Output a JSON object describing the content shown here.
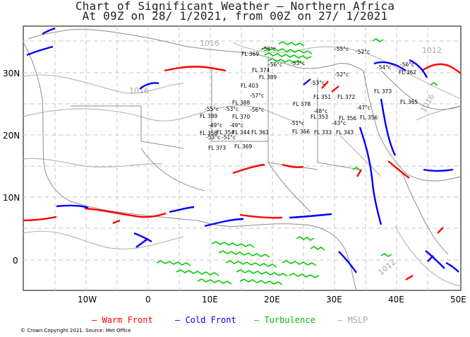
{
  "header": {
    "title_line1": "Chart of Significant Weather — Northern Africa",
    "title_line2": "At 09Z on 28/ 1/2021, from 00Z on 27/ 1/2021"
  },
  "axes": {
    "x_ticks": [
      "10W",
      "0",
      "10E",
      "20E",
      "30E",
      "40E",
      "50E"
    ],
    "y_ticks": [
      "30N",
      "20N",
      "10N",
      "0"
    ]
  },
  "legend": {
    "warm_front": "— Warm Front",
    "cold_front": "— Cold Front",
    "turbulence": "— Turbulence",
    "mslp": "— MSLP"
  },
  "colors": {
    "warm_front": "#ff0000",
    "cold_front": "#0000ff",
    "turbulence": "#00cc00",
    "mslp": "#b0b0b0",
    "coast": "#8c8c8c",
    "grid": "#c8c8c8"
  },
  "isobar_labels": [
    "1016",
    "1016",
    "1016",
    "1012",
    "1012"
  ],
  "tropopause_labels": [
    "-55°c",
    "-53°c",
    "-56°c",
    "-58°c",
    "-54°c",
    "-56°c",
    "-57°c",
    "-56°c",
    "-55°c",
    "-53°c",
    "-53°c",
    "-52°c",
    "-51°c",
    "-52°c",
    "-49°c",
    "-48°c",
    "-49°c",
    "-47°c",
    "-53°c",
    "-51°c",
    "-43°c",
    "FL 374",
    "FL 369",
    "FL 365",
    "FL 366",
    "FL 362",
    "FL 356",
    "FL 403",
    "FL 388",
    "FL 389",
    "FL 373",
    "FL 351",
    "FL 372",
    "FL 389",
    "FL 370",
    "FL 353",
    "FL 344",
    "FL 378",
    "FL 356",
    "FL 358",
    "FL 354",
    "FL 361",
    "FL 333",
    "FL 343",
    "FL 369",
    "FL 373"
  ],
  "copyright": "© Crown Copyright 2021. Source: Met Office"
}
